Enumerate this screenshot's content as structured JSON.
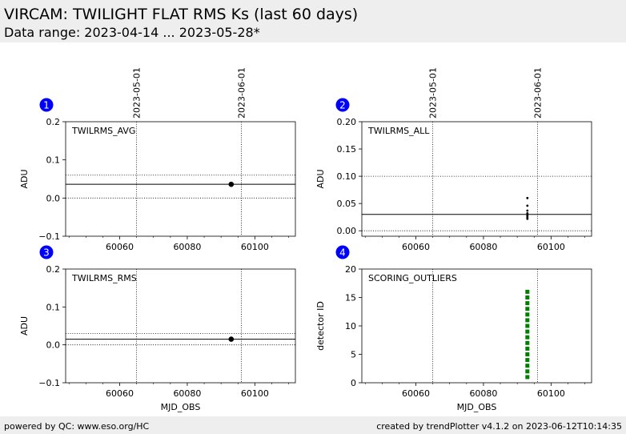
{
  "header": {
    "title": "VIRCAM: TWILIGHT FLAT RMS Ks (last 60 days)",
    "subtitle": "Data range: 2023-04-14 ... 2023-05-28*"
  },
  "footer": {
    "left": "powered by QC: www.eso.org/HC",
    "right": "created by trendPlotter v4.1.2 on 2023-06-12T10:14:35"
  },
  "colors": {
    "panel_badge": "#0000ff",
    "points": "#000000",
    "outlier_points": "#008000",
    "header_bg": "#eeeeee"
  },
  "chart_data": [
    {
      "type": "scatter",
      "panel_number": "1",
      "panel_label": "TWILRMS_AVG",
      "xlabel": "",
      "ylabel": "ADU",
      "xlim": [
        60044,
        60112
      ],
      "ylim": [
        -0.1,
        0.2
      ],
      "xticks": [
        60060,
        60080,
        60100
      ],
      "yticks": [
        -0.1,
        0.0,
        0.1,
        0.2
      ],
      "ytick_labels": [
        "−0.1",
        "0.0",
        "0.1",
        "0.2"
      ],
      "top_date_labels": [
        {
          "label": "2023-05-01",
          "mjd": 60065
        },
        {
          "label": "2023-06-01",
          "mjd": 60096
        }
      ],
      "hlines": [
        {
          "y": 0.0,
          "style": "dotted"
        },
        {
          "y": 0.06,
          "style": "dotted"
        },
        {
          "y": 0.036,
          "style": "solid"
        }
      ],
      "points": [
        {
          "x": 60093,
          "y": 0.036
        }
      ],
      "point_size": "large",
      "point_color": "#000000"
    },
    {
      "type": "scatter",
      "panel_number": "2",
      "panel_label": "TWILRMS_ALL",
      "xlabel": "",
      "ylabel": "ADU",
      "xlim": [
        60044,
        60112
      ],
      "ylim": [
        -0.01,
        0.2
      ],
      "xticks": [
        60060,
        60080,
        60100
      ],
      "yticks": [
        0.0,
        0.05,
        0.1,
        0.15,
        0.2
      ],
      "ytick_labels": [
        "0.00",
        "0.05",
        "0.10",
        "0.15",
        "0.20"
      ],
      "top_date_labels": [
        {
          "label": "2023-05-01",
          "mjd": 60065
        },
        {
          "label": "2023-06-01",
          "mjd": 60096
        }
      ],
      "hlines": [
        {
          "y": 0.0,
          "style": "dotted"
        },
        {
          "y": 0.1,
          "style": "dotted"
        },
        {
          "y": 0.03,
          "style": "solid"
        }
      ],
      "points": [
        {
          "x": 60093,
          "y": 0.06
        },
        {
          "x": 60093,
          "y": 0.046
        },
        {
          "x": 60093,
          "y": 0.037
        },
        {
          "x": 60093,
          "y": 0.032
        },
        {
          "x": 60093,
          "y": 0.028
        },
        {
          "x": 60093,
          "y": 0.025
        },
        {
          "x": 60093,
          "y": 0.022
        }
      ],
      "point_size": "small",
      "point_color": "#000000"
    },
    {
      "type": "scatter",
      "panel_number": "3",
      "panel_label": "TWILRMS_RMS",
      "xlabel": "MJD_OBS",
      "ylabel": "ADU",
      "xlim": [
        60044,
        60112
      ],
      "ylim": [
        -0.1,
        0.2
      ],
      "xticks": [
        60060,
        60080,
        60100
      ],
      "yticks": [
        -0.1,
        0.0,
        0.1,
        0.2
      ],
      "ytick_labels": [
        "−0.1",
        "0.0",
        "0.1",
        "0.2"
      ],
      "top_date_labels": [
        {
          "label": "",
          "mjd": 60065
        },
        {
          "label": "",
          "mjd": 60096
        }
      ],
      "hlines": [
        {
          "y": 0.0,
          "style": "dotted"
        },
        {
          "y": 0.03,
          "style": "dotted"
        },
        {
          "y": 0.015,
          "style": "solid"
        }
      ],
      "points": [
        {
          "x": 60093,
          "y": 0.015
        }
      ],
      "point_size": "large",
      "point_color": "#000000"
    },
    {
      "type": "scatter",
      "panel_number": "4",
      "panel_label": "SCORING_OUTLIERS",
      "xlabel": "MJD_OBS",
      "ylabel": "detector ID",
      "xlim": [
        60044,
        60112
      ],
      "ylim": [
        0,
        20
      ],
      "xticks": [
        60060,
        60080,
        60100
      ],
      "yticks": [
        0,
        5,
        10,
        15,
        20
      ],
      "ytick_labels": [
        "0",
        "5",
        "10",
        "15",
        "20"
      ],
      "top_date_labels": [
        {
          "label": "",
          "mjd": 60065
        },
        {
          "label": "",
          "mjd": 60096
        }
      ],
      "hlines": [],
      "points": [
        {
          "x": 60093,
          "y": 1
        },
        {
          "x": 60093,
          "y": 2
        },
        {
          "x": 60093,
          "y": 3
        },
        {
          "x": 60093,
          "y": 4
        },
        {
          "x": 60093,
          "y": 5
        },
        {
          "x": 60093,
          "y": 6
        },
        {
          "x": 60093,
          "y": 7
        },
        {
          "x": 60093,
          "y": 8
        },
        {
          "x": 60093,
          "y": 9
        },
        {
          "x": 60093,
          "y": 10
        },
        {
          "x": 60093,
          "y": 11
        },
        {
          "x": 60093,
          "y": 12
        },
        {
          "x": 60093,
          "y": 13
        },
        {
          "x": 60093,
          "y": 14
        },
        {
          "x": 60093,
          "y": 15
        },
        {
          "x": 60093,
          "y": 16
        }
      ],
      "point_size": "square",
      "point_color": "#008000"
    }
  ]
}
